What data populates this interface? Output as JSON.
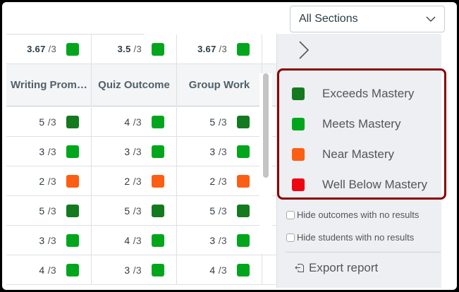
{
  "colors": {
    "exceeds": "#137a1f",
    "meets": "#02a61d",
    "near": "#fc5e13",
    "well_below": "#ee0612",
    "legend_border": "#8b0000"
  },
  "section_select": {
    "value": "All Sections",
    "icon": "chevron-down-icon"
  },
  "averages": [
    {
      "score": "3.67",
      "max": "/3",
      "level": "meets"
    },
    {
      "score": "3.5",
      "max": "/3",
      "level": "meets"
    },
    {
      "score": "3.67",
      "max": "/3",
      "level": "meets"
    }
  ],
  "columns": [
    {
      "label": "Writing Prom…"
    },
    {
      "label": "Quiz Outcome"
    },
    {
      "label": "Group Work"
    }
  ],
  "rows": [
    [
      {
        "score": "5",
        "max": "/3",
        "level": "exceeds"
      },
      {
        "score": "4",
        "max": "/3",
        "level": "meets"
      },
      {
        "score": "5",
        "max": "/3",
        "level": "exceeds"
      }
    ],
    [
      {
        "score": "3",
        "max": "/3",
        "level": "meets"
      },
      {
        "score": "3",
        "max": "/3",
        "level": "meets"
      },
      {
        "score": "3",
        "max": "/3",
        "level": "meets"
      }
    ],
    [
      {
        "score": "2",
        "max": "/3",
        "level": "near"
      },
      {
        "score": "2",
        "max": "/3",
        "level": "near"
      },
      {
        "score": "2",
        "max": "/3",
        "level": "near"
      }
    ],
    [
      {
        "score": "5",
        "max": "/3",
        "level": "exceeds"
      },
      {
        "score": "5",
        "max": "/3",
        "level": "exceeds"
      },
      {
        "score": "5",
        "max": "/3",
        "level": "exceeds"
      }
    ],
    [
      {
        "score": "3",
        "max": "/3",
        "level": "meets"
      },
      {
        "score": "4",
        "max": "/3",
        "level": "meets"
      },
      {
        "score": "3",
        "max": "/3",
        "level": "meets"
      }
    ],
    [
      {
        "score": "4",
        "max": "/3",
        "level": "meets"
      },
      {
        "score": "3",
        "max": "/3",
        "level": "meets"
      },
      {
        "score": "4",
        "max": "/3",
        "level": "meets"
      }
    ]
  ],
  "legend": [
    {
      "label": "Exceeds Mastery",
      "level": "exceeds"
    },
    {
      "label": "Meets Mastery",
      "level": "meets"
    },
    {
      "label": "Near Mastery",
      "level": "near"
    },
    {
      "label": "Well Below Mastery",
      "level": "well_below"
    }
  ],
  "options": {
    "hide_outcomes": {
      "label": "Hide outcomes with no results",
      "checked": false
    },
    "hide_students": {
      "label": "Hide students with no results",
      "checked": false
    }
  },
  "export": {
    "label": "Export report",
    "icon": "export-icon"
  },
  "collapse_icon": "chevron-right-icon"
}
